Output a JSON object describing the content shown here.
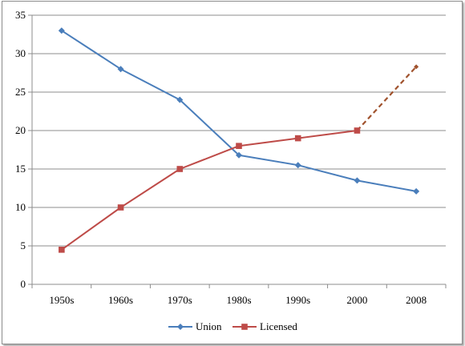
{
  "chart_data": {
    "type": "line",
    "categories": [
      "1950s",
      "1960s",
      "1970s",
      "1980s",
      "1990s",
      "2000",
      "2008"
    ],
    "ylim": [
      0,
      35
    ],
    "yticks": [
      0,
      5,
      10,
      15,
      20,
      25,
      30,
      35
    ],
    "grid": true,
    "legend_position": "bottom",
    "title": "",
    "xlabel": "",
    "ylabel": "",
    "series": [
      {
        "name": "Union",
        "values": [
          33,
          28,
          24,
          16.8,
          15.5,
          13.5,
          12.1
        ],
        "color": "#4a7ebb",
        "marker": "diamond",
        "dashed_from_index": null
      },
      {
        "name": "Licensed",
        "values": [
          4.5,
          10,
          15,
          18,
          19,
          20,
          28.3
        ],
        "color": "#be4b48",
        "dashed_color": "#a0522d",
        "marker": "square",
        "dashed_from_index": 5
      }
    ]
  }
}
